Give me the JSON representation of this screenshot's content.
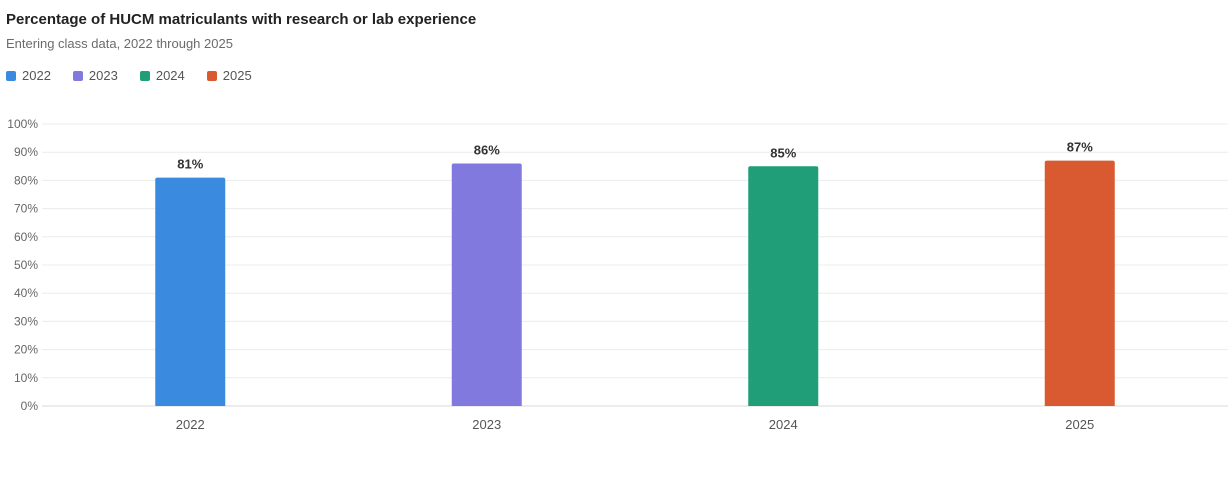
{
  "chart_data": {
    "type": "bar",
    "title": "Percentage of HUCM matriculants with research or lab experience",
    "subtitle": "Entering class data, 2022 through 2025",
    "categories": [
      "2022",
      "2023",
      "2024",
      "2025"
    ],
    "values": [
      81,
      86,
      85,
      87
    ],
    "data_labels": [
      "81%",
      "86%",
      "85%",
      "87%"
    ],
    "colors": [
      "#3a8be0",
      "#8279de",
      "#1f9e78",
      "#d95a31"
    ],
    "legend": [
      "2022",
      "2023",
      "2024",
      "2025"
    ],
    "legend_position": "top-left",
    "ylim": [
      0,
      100
    ],
    "yticks": [
      "0%",
      "10%",
      "20%",
      "30%",
      "40%",
      "50%",
      "60%",
      "70%",
      "80%",
      "90%",
      "100%"
    ],
    "xlabel": "",
    "ylabel": "",
    "grid": true
  }
}
